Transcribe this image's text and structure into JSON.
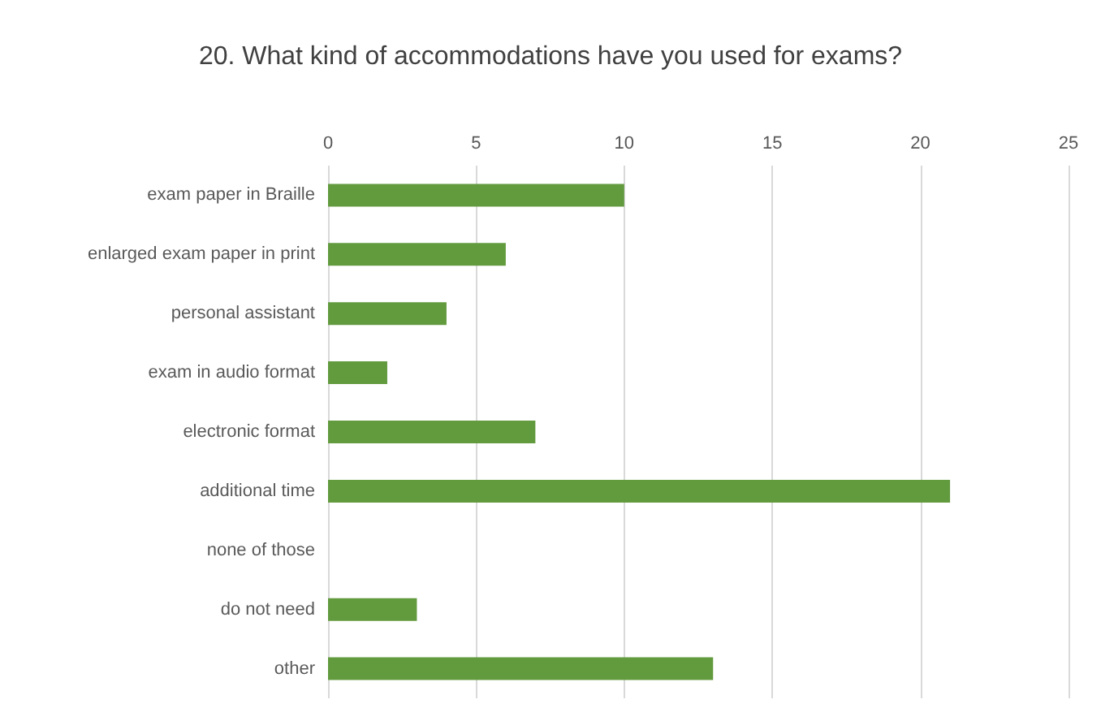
{
  "chart_data": {
    "type": "bar",
    "orientation": "horizontal",
    "title": "20. What kind of accommodations have you used for exams?",
    "categories": [
      "exam paper in Braille",
      "enlarged exam paper in print",
      "personal assistant",
      "exam in audio format",
      "electronic format",
      "additional time",
      "none of those",
      "do not need",
      "other"
    ],
    "values": [
      10,
      6,
      4,
      2,
      7,
      21,
      0,
      3,
      13
    ],
    "color": "#629a3e",
    "xlim": [
      0,
      25
    ],
    "xticks": [
      0,
      5,
      10,
      15,
      20,
      25
    ],
    "grid": "x"
  }
}
